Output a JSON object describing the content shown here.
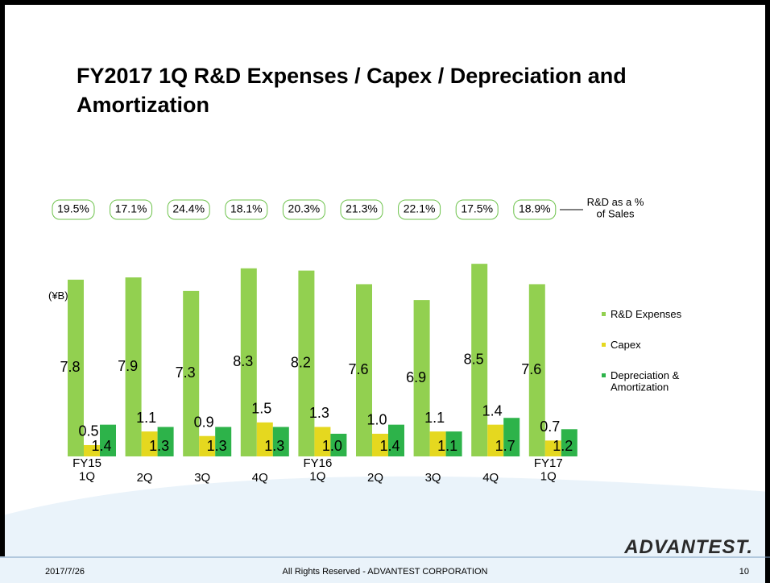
{
  "title": "FY2017 1Q R&D Expenses / Capex / Depreciation and Amortization",
  "logo": "ADVANTEST.",
  "footer": {
    "date": "2017/7/26",
    "copyright": "All Rights Reserved - ADVANTEST CORPORATION",
    "page": "10"
  },
  "chart_data": {
    "type": "bar",
    "unit_label": "(¥B)",
    "categories": [
      "FY15\n1Q",
      "2Q",
      "3Q",
      "4Q",
      "FY16\n1Q",
      "2Q",
      "3Q",
      "4Q",
      "FY17\n1Q"
    ],
    "series": [
      {
        "name": "R&D Expenses",
        "color": "#92d050",
        "values": [
          7.8,
          7.9,
          7.3,
          8.3,
          8.2,
          7.6,
          6.9,
          8.5,
          7.6
        ],
        "value_labels": [
          "7.8",
          "7.9",
          "7.3",
          "8.3",
          "8.2",
          "7.6",
          "6.9",
          "8.5",
          "7.6"
        ]
      },
      {
        "name": "Capex",
        "color": "#e5d81f",
        "values": [
          0.5,
          1.1,
          0.9,
          1.5,
          1.3,
          1.0,
          1.1,
          1.4,
          0.7
        ],
        "value_labels": [
          "0.5",
          "1.1",
          "0.9",
          "1.5",
          "1.3",
          "1.0",
          "1.1",
          "1.4",
          "0.7"
        ]
      },
      {
        "name": "Depreciation &\nAmortization",
        "color": "#2db34a",
        "values": [
          1.4,
          1.3,
          1.3,
          1.3,
          1.0,
          1.4,
          1.1,
          1.7,
          1.2
        ],
        "value_labels": [
          "1.4",
          "1.3",
          "1.3",
          "1.3",
          "1.0",
          "1.4",
          "1.1",
          "1.7",
          "1.2"
        ]
      }
    ],
    "ratio": {
      "name": "R&D as a %\nof Sales",
      "values": [
        19.5,
        17.1,
        24.4,
        18.1,
        20.3,
        21.3,
        22.1,
        17.5,
        18.9
      ],
      "value_labels": [
        "19.5%",
        "17.1%",
        "24.4%",
        "18.1%",
        "20.3%",
        "21.3%",
        "22.1%",
        "17.5%",
        "18.9%"
      ]
    }
  }
}
